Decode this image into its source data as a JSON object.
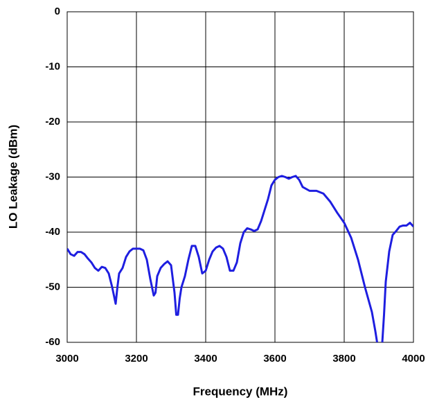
{
  "chart_data": {
    "type": "line",
    "x_label": "Frequency (MHz)",
    "y_label": "LO Leakage (dBm)",
    "xlim": [
      3000,
      4000
    ],
    "xticks": [
      3000,
      3200,
      3400,
      3600,
      3800,
      4000
    ],
    "ylim": [
      -60,
      0
    ],
    "yticks": [
      0,
      -10,
      -20,
      -30,
      -40,
      -50,
      -60
    ],
    "grid": true,
    "x": [
      3000,
      3010,
      3020,
      3030,
      3040,
      3050,
      3060,
      3070,
      3080,
      3090,
      3100,
      3110,
      3120,
      3130,
      3140,
      3145,
      3150,
      3160,
      3170,
      3180,
      3190,
      3200,
      3210,
      3220,
      3230,
      3240,
      3250,
      3255,
      3260,
      3270,
      3280,
      3290,
      3300,
      3310,
      3315,
      3320,
      3325,
      3330,
      3340,
      3350,
      3360,
      3370,
      3380,
      3390,
      3400,
      3410,
      3420,
      3430,
      3440,
      3450,
      3460,
      3470,
      3480,
      3490,
      3500,
      3510,
      3520,
      3530,
      3540,
      3550,
      3560,
      3570,
      3580,
      3590,
      3600,
      3610,
      3620,
      3630,
      3640,
      3650,
      3660,
      3670,
      3680,
      3700,
      3720,
      3740,
      3760,
      3780,
      3800,
      3820,
      3840,
      3860,
      3880,
      3890,
      3895,
      3900,
      3910,
      3915,
      3920,
      3930,
      3940,
      3950,
      3960,
      3970,
      3980,
      3990,
      4000
    ],
    "series": [
      {
        "color": "#1e1ee0",
        "values": [
          -43,
          -44,
          -44.3,
          -43.6,
          -43.6,
          -44,
          -44.8,
          -45.5,
          -46.5,
          -47,
          -46.3,
          -46.5,
          -47.5,
          -50,
          -53,
          -50,
          -47.5,
          -46.5,
          -44.5,
          -43.5,
          -43,
          -43,
          -43,
          -43.3,
          -45,
          -48.5,
          -51.5,
          -51,
          -48,
          -46.5,
          -45.8,
          -45.3,
          -46,
          -51,
          -55,
          -55,
          -52,
          -50,
          -48,
          -45,
          -42.5,
          -42.5,
          -44.5,
          -47.5,
          -47,
          -45,
          -43.5,
          -42.8,
          -42.5,
          -43,
          -44.5,
          -47,
          -47,
          -45.5,
          -42,
          -40,
          -39.3,
          -39.5,
          -39.8,
          -39.5,
          -38,
          -36,
          -34,
          -31.5,
          -30.5,
          -30,
          -29.8,
          -30,
          -30.3,
          -30,
          -29.8,
          -30.5,
          -31.8,
          -32.5,
          -32.5,
          -33,
          -34.5,
          -36.5,
          -38.3,
          -41,
          -45,
          -50,
          -54.5,
          -58,
          -60,
          null,
          -60,
          -55,
          -49,
          -43.5,
          -40.5,
          -39.8,
          -39,
          -38.8,
          -38.8,
          -38.3,
          -39
        ]
      }
    ]
  }
}
